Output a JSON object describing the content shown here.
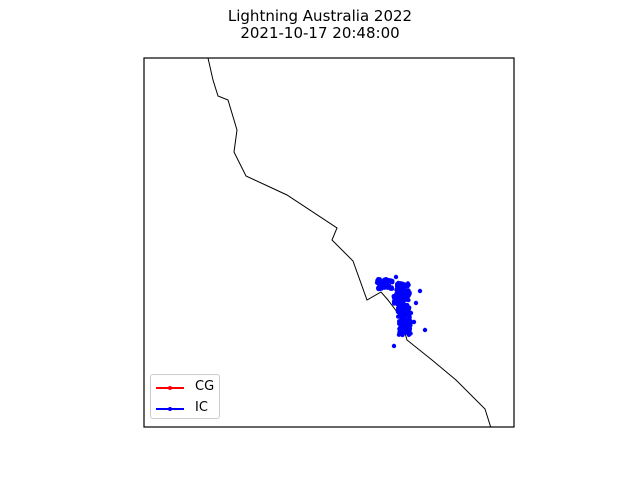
{
  "title_line1": "Lightning Australia 2022",
  "title_line2": "2021-10-17 20:48:00",
  "colors": {
    "cg": "#ff0000",
    "ic": "#0000ff",
    "coast": "#000000"
  },
  "legend": [
    {
      "key": "cg",
      "label": "CG"
    },
    {
      "key": "ic",
      "label": "IC"
    }
  ]
}
